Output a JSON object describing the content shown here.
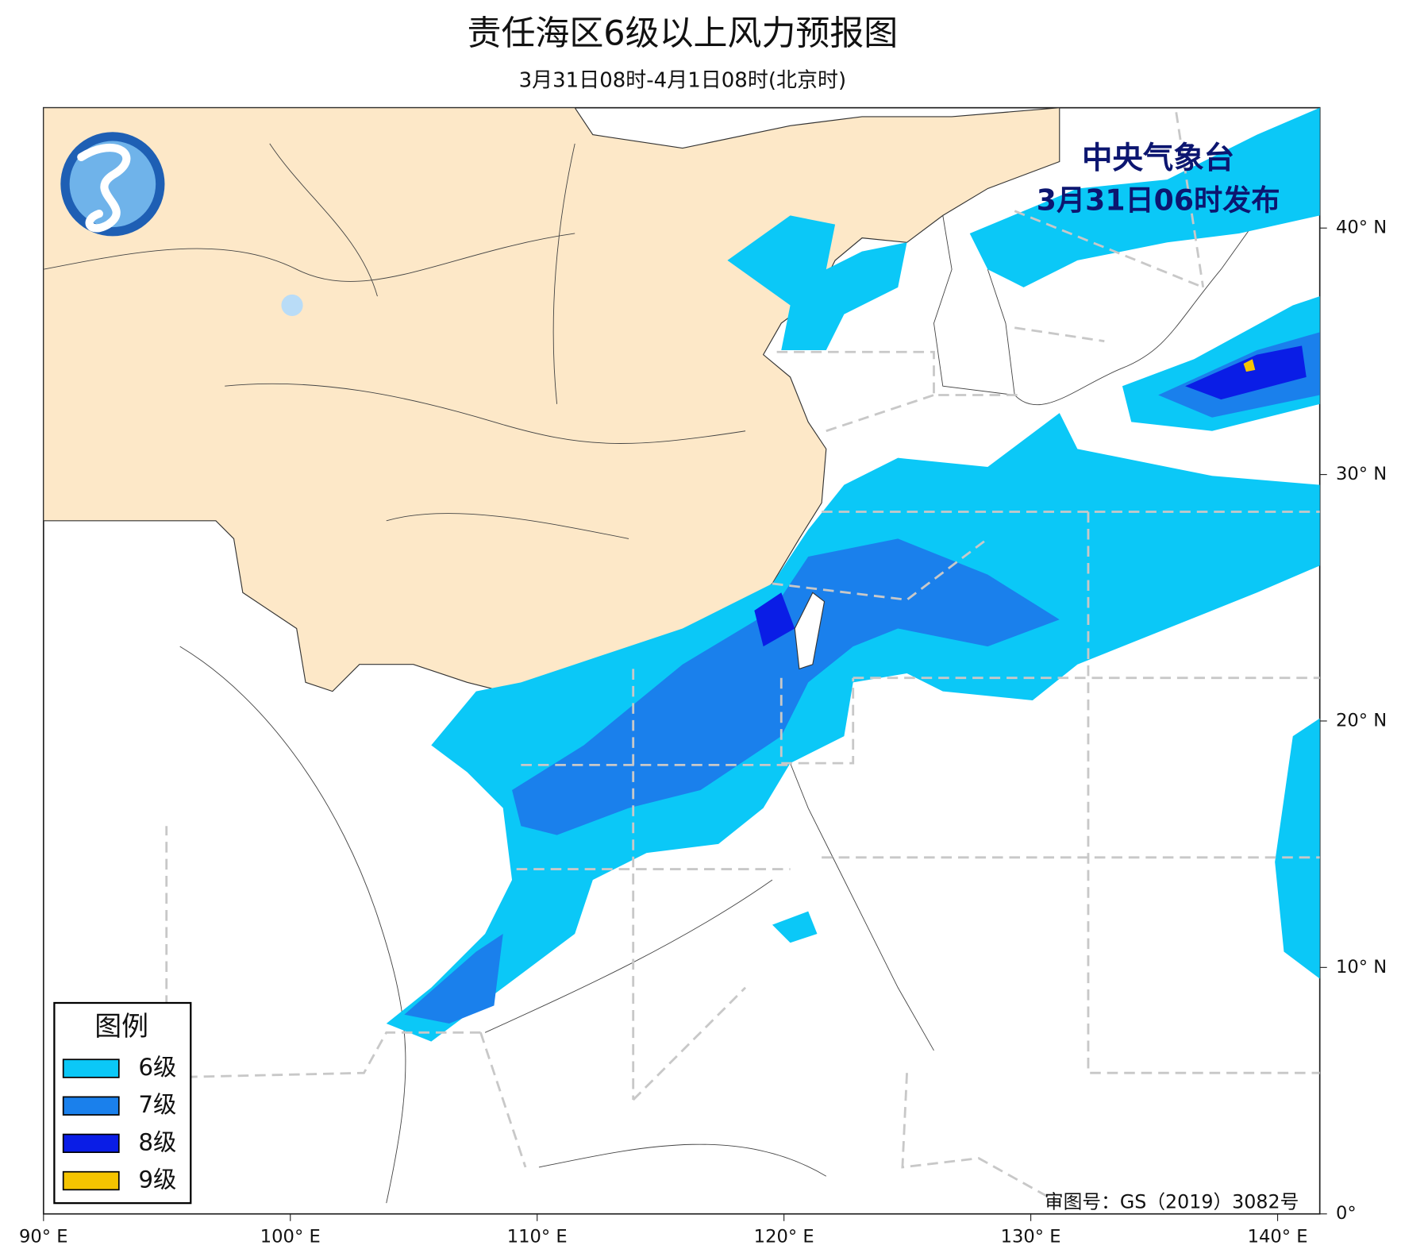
{
  "title": "责任海区6级以上风力预报图",
  "subtitle": "3月31日08时-4月1日08时(北京时)",
  "issuer": "中央气象台",
  "issue_time": "3月31日06时发布",
  "legend": {
    "title": "图例",
    "items": [
      {
        "label": "6级",
        "color": "#0bc8f7"
      },
      {
        "label": "7级",
        "color": "#1a80ec"
      },
      {
        "label": "8级",
        "color": "#0a1de6"
      },
      {
        "label": "9级",
        "color": "#f5c400"
      }
    ]
  },
  "review_number": "审图号：GS（2019）3082号",
  "lon_ticks": [
    {
      "value": 90,
      "label": "90° E"
    },
    {
      "value": 100,
      "label": "100° E"
    },
    {
      "value": 110,
      "label": "110° E"
    },
    {
      "value": 120,
      "label": "120° E"
    },
    {
      "value": 130,
      "label": "130° E"
    },
    {
      "value": 140,
      "label": "140° E"
    }
  ],
  "lat_ticks": [
    {
      "value": 0,
      "label": "0°"
    },
    {
      "value": 10,
      "label": "10° N"
    },
    {
      "value": 20,
      "label": "20° N"
    },
    {
      "value": 30,
      "label": "30° N"
    },
    {
      "value": 40,
      "label": "40° N"
    }
  ]
}
